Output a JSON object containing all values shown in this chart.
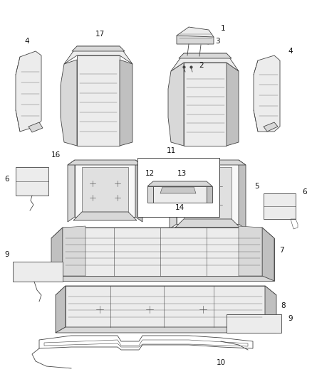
{
  "bg_color": "#ffffff",
  "line_color": "#444444",
  "fill_light": "#ececec",
  "fill_mid": "#d8d8d8",
  "fill_dark": "#c0c0c0",
  "fill_white": "#f8f8f8",
  "figsize": [
    4.38,
    5.33
  ],
  "dpi": 100,
  "label_color": "#111111",
  "label_fontsize": 7.5
}
